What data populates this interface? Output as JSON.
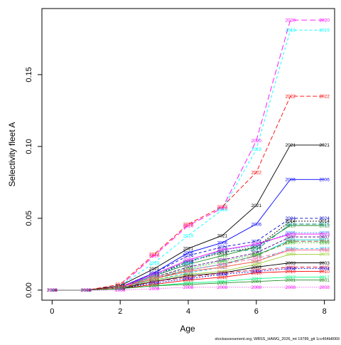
{
  "chart_data": {
    "type": "line",
    "title": "",
    "xlabel": "Age",
    "ylabel": "Selectivity fleet A",
    "xlim": [
      -0.3,
      8.3
    ],
    "ylim": [
      -0.007,
      0.196
    ],
    "xticks": [
      0,
      2,
      4,
      6,
      8
    ],
    "yticks": [
      0.0,
      0.05,
      0.1,
      0.15
    ],
    "ytick_labels": [
      "0.00",
      "0.05",
      "0.10",
      "0.15"
    ],
    "x": [
      0,
      1,
      2,
      3,
      4,
      5,
      6,
      7,
      8
    ],
    "grid": false,
    "legend": "none",
    "caption": "stockassessment.org, WBSS_HAWG_2026_mt 19789_git 1cc464b8069",
    "series": [
      {
        "name": "2020",
        "color": "#FF00FF",
        "dash": "8,4",
        "values": [
          0,
          0,
          0.003,
          0.024,
          0.045,
          0.057,
          0.104,
          0.188,
          0.188
        ]
      },
      {
        "name": "2019",
        "color": "#00FFFF",
        "dash": "4,3",
        "values": [
          0,
          0,
          0.003,
          0.019,
          0.038,
          0.056,
          0.098,
          0.181,
          0.181
        ]
      },
      {
        "name": "2022",
        "color": "#FF0000",
        "dash": "6,3",
        "values": [
          0,
          0,
          0.004,
          0.025,
          0.046,
          0.058,
          0.082,
          0.135,
          0.135
        ]
      },
      {
        "name": "2021",
        "color": "#000000",
        "dash": "",
        "values": [
          0,
          0,
          0.003,
          0.015,
          0.029,
          0.038,
          0.059,
          0.101,
          0.101
        ]
      },
      {
        "name": "2006",
        "color": "#0000FF",
        "dash": "",
        "values": [
          0,
          0,
          0.002,
          0.012,
          0.026,
          0.033,
          0.046,
          0.077,
          0.077
        ]
      },
      {
        "name": "2024",
        "color": "#0000CD",
        "dash": "4,3",
        "values": [
          0,
          0,
          0.002,
          0.012,
          0.024,
          0.03,
          0.034,
          0.05,
          0.05
        ]
      },
      {
        "name": "2014",
        "color": "#000000",
        "dash": "2,2",
        "values": [
          0,
          0,
          0.002,
          0.01,
          0.02,
          0.026,
          0.03,
          0.048,
          0.048
        ]
      },
      {
        "name": "2013",
        "color": "#228B22",
        "dash": "",
        "values": [
          0,
          0,
          0.002,
          0.01,
          0.018,
          0.024,
          0.03,
          0.045,
          0.045
        ]
      },
      {
        "name": "2015",
        "color": "#008B8B",
        "dash": "6,3",
        "values": [
          0,
          0,
          0.002,
          0.011,
          0.02,
          0.027,
          0.028,
          0.046,
          0.046
        ]
      },
      {
        "name": "2025",
        "color": "#1E90FF",
        "dash": "2,2",
        "values": [
          0,
          0,
          0.002,
          0.01,
          0.019,
          0.028,
          0.031,
          0.04,
          0.04
        ]
      },
      {
        "name": "2023",
        "color": "#FF00FF",
        "dash": "",
        "values": [
          0,
          0,
          0.002,
          0.011,
          0.021,
          0.028,
          0.032,
          0.039,
          0.039
        ]
      },
      {
        "name": "2007",
        "color": "#4B0082",
        "dash": "4,2",
        "values": [
          0,
          0,
          0.002,
          0.009,
          0.016,
          0.021,
          0.026,
          0.037,
          0.037
        ]
      },
      {
        "name": "2011",
        "color": "#00CED1",
        "dash": "",
        "values": [
          0,
          0,
          0.001,
          0.008,
          0.014,
          0.018,
          0.024,
          0.035,
          0.035
        ]
      },
      {
        "name": "2016",
        "color": "#8B4513",
        "dash": "6,3",
        "values": [
          0,
          0,
          0.002,
          0.008,
          0.014,
          0.018,
          0.024,
          0.034,
          0.034
        ]
      },
      {
        "name": "1999",
        "color": "#32CD32",
        "dash": "2,2",
        "values": [
          0,
          0,
          0.002,
          0.009,
          0.015,
          0.02,
          0.025,
          0.033,
          0.033
        ]
      },
      {
        "name": "2012",
        "color": "#00BFFF",
        "dash": "4,3",
        "values": [
          0,
          0,
          0.001,
          0.007,
          0.012,
          0.016,
          0.02,
          0.029,
          0.029
        ]
      },
      {
        "name": "2002",
        "color": "#FF6347",
        "dash": "",
        "values": [
          0,
          0,
          0.002,
          0.008,
          0.013,
          0.016,
          0.02,
          0.028,
          0.028
        ]
      },
      {
        "name": "2018",
        "color": "#FF69B4",
        "dash": "6,3",
        "values": [
          0,
          0,
          0.002,
          0.009,
          0.014,
          0.018,
          0.022,
          0.028,
          0.028
        ]
      },
      {
        "name": "2009",
        "color": "#9ACD32",
        "dash": "",
        "values": [
          0,
          0,
          0.001,
          0.007,
          0.011,
          0.013,
          0.018,
          0.025,
          0.025
        ]
      },
      {
        "name": "2003",
        "color": "#000000",
        "dash": "",
        "values": [
          0,
          0,
          0.001,
          0.006,
          0.01,
          0.012,
          0.016,
          0.019,
          0.019
        ]
      },
      {
        "name": "2005",
        "color": "#DC143C",
        "dash": "6,3",
        "values": [
          0,
          0,
          0.002,
          0.006,
          0.009,
          0.012,
          0.014,
          0.016,
          0.016
        ]
      },
      {
        "name": "2004",
        "color": "#0000FF",
        "dash": "2,2",
        "values": [
          0,
          0,
          0.001,
          0.005,
          0.008,
          0.011,
          0.013,
          0.015,
          0.015
        ]
      },
      {
        "name": "2010",
        "color": "#FF0000",
        "dash": "",
        "values": [
          0,
          0,
          0.001,
          0.004,
          0.007,
          0.009,
          0.012,
          0.013,
          0.013
        ]
      },
      {
        "name": "2017",
        "color": "#00FF7F",
        "dash": "",
        "values": [
          0,
          0,
          0.001,
          0.003,
          0.005,
          0.006,
          0.008,
          0.009,
          0.009
        ]
      },
      {
        "name": "2001",
        "color": "#228B22",
        "dash": "",
        "values": [
          0,
          0,
          0.001,
          0.003,
          0.004,
          0.005,
          0.006,
          0.007,
          0.007
        ]
      },
      {
        "name": "2008",
        "color": "#FF00FF",
        "dash": "1,2",
        "values": [
          0,
          0,
          0.0,
          0.001,
          0.002,
          0.002,
          0.002,
          0.002,
          0.002
        ]
      }
    ]
  }
}
